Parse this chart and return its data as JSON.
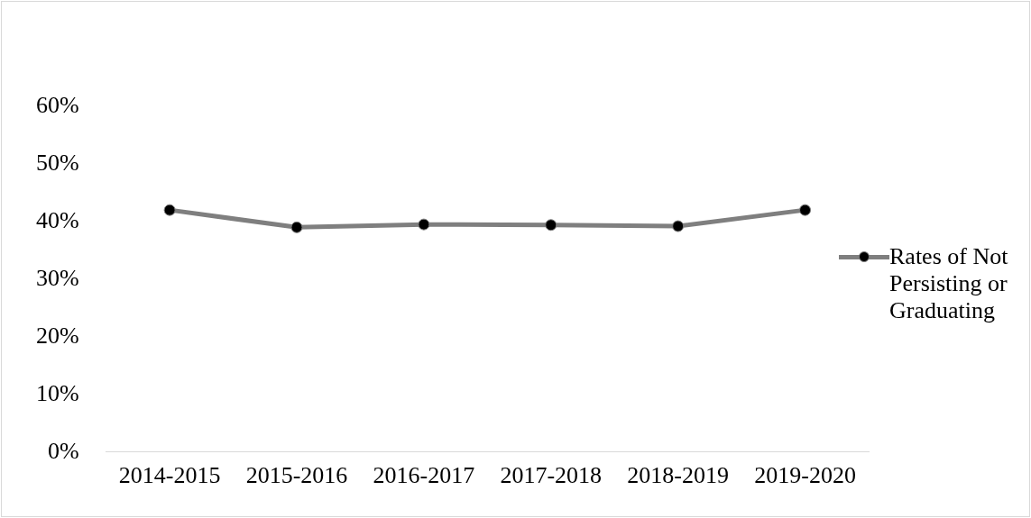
{
  "chart_data": {
    "type": "line",
    "categories": [
      "2014-2015",
      "2015-2016",
      "2016-2017",
      "2017-2018",
      "2018-2019",
      "2019-2020"
    ],
    "series": [
      {
        "name": "Rates of Not Persisting or Graduating",
        "color": "#7f7f7f",
        "values": [
          42,
          39,
          39.5,
          39.4,
          39.2,
          42
        ]
      }
    ],
    "ylim": [
      0,
      60
    ],
    "yticks": [
      {
        "value": 0,
        "label": "0%"
      },
      {
        "value": 10,
        "label": "10%"
      },
      {
        "value": 20,
        "label": "20%"
      },
      {
        "value": 30,
        "label": "30%"
      },
      {
        "value": 40,
        "label": "40%"
      },
      {
        "value": 50,
        "label": "50%"
      },
      {
        "value": 60,
        "label": "60%"
      }
    ],
    "grid": false,
    "legend": "right",
    "marker": "circle",
    "line_style": "solid"
  }
}
